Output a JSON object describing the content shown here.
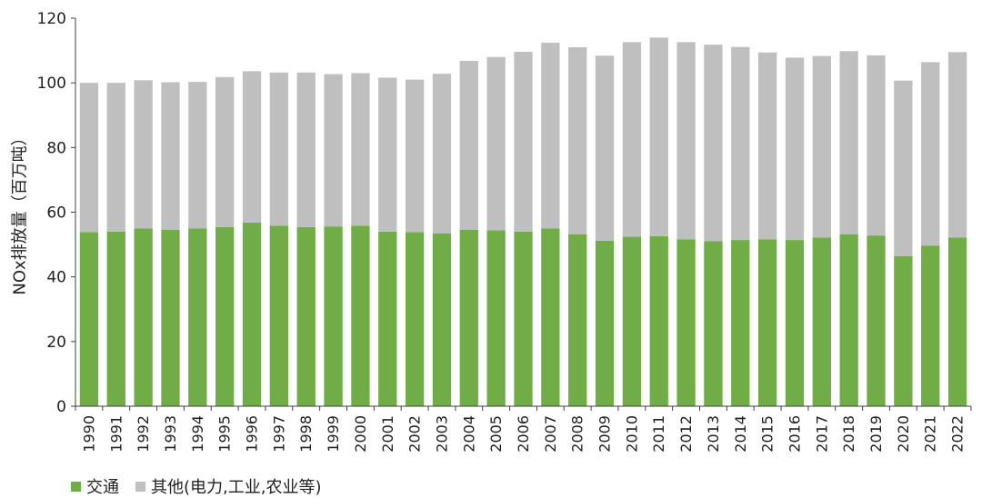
{
  "chart_data": {
    "type": "bar",
    "stacked": true,
    "title": "",
    "xlabel": "",
    "ylabel": "NOx排放量（百万吨）",
    "ylim": [
      0,
      120
    ],
    "yticks": [
      0,
      20,
      40,
      60,
      80,
      100,
      120
    ],
    "grid": false,
    "legend_position": "bottom-left",
    "categories": [
      "1990",
      "1991",
      "1992",
      "1993",
      "1994",
      "1995",
      "1996",
      "1997",
      "1998",
      "1999",
      "2000",
      "2001",
      "2002",
      "2003",
      "2004",
      "2005",
      "2006",
      "2007",
      "2008",
      "2009",
      "2010",
      "2011",
      "2012",
      "2013",
      "2014",
      "2015",
      "2016",
      "2017",
      "2018",
      "2019",
      "2020",
      "2021",
      "2022"
    ],
    "series": [
      {
        "name": "交通",
        "color": "#70ad47",
        "values": [
          53.8,
          54.0,
          55.0,
          54.6,
          55.0,
          55.4,
          56.8,
          55.8,
          55.4,
          55.6,
          55.8,
          54.0,
          53.8,
          53.4,
          54.6,
          54.4,
          54.0,
          55.0,
          53.2,
          51.2,
          52.4,
          52.6,
          51.6,
          51.0,
          51.4,
          51.6,
          51.4,
          52.2,
          53.2,
          52.8,
          46.4,
          49.6,
          52.2
        ]
      },
      {
        "name": "其他(电力,工业,农业等)",
        "color": "#bfbfbf",
        "values": [
          46.2,
          46.0,
          45.8,
          45.6,
          45.3,
          46.4,
          46.8,
          47.4,
          47.8,
          47.1,
          47.2,
          47.6,
          47.2,
          49.4,
          52.2,
          53.6,
          55.6,
          57.4,
          57.8,
          57.2,
          60.2,
          61.4,
          61.0,
          60.8,
          59.7,
          57.8,
          56.4,
          56.1,
          56.6,
          55.7,
          54.3,
          56.8,
          57.3
        ]
      }
    ]
  }
}
